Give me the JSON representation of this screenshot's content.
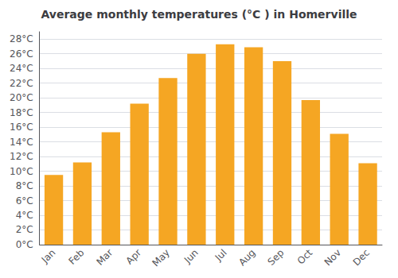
{
  "chart_data": {
    "type": "bar",
    "title": "Average monthly temperatures (°C ) in Homerville",
    "categories": [
      "Jan",
      "Feb",
      "Mar",
      "Apr",
      "May",
      "Jun",
      "Jul",
      "Aug",
      "Sep",
      "Oct",
      "Nov",
      "Dec"
    ],
    "values": [
      9.5,
      11.2,
      15.3,
      19.2,
      22.7,
      26.0,
      27.3,
      26.9,
      25.0,
      19.7,
      15.1,
      11.1
    ],
    "color": "#F5A623",
    "ylim": [
      0,
      29
    ],
    "yticks": [
      {
        "value": 0,
        "label": "0°C"
      },
      {
        "value": 2,
        "label": "2°C"
      },
      {
        "value": 4,
        "label": "4°C"
      },
      {
        "value": 6,
        "label": "6°C"
      },
      {
        "value": 8,
        "label": "8°C"
      },
      {
        "value": 10,
        "label": "10°C"
      },
      {
        "value": 12,
        "label": "12°C"
      },
      {
        "value": 14,
        "label": "14°C"
      },
      {
        "value": 16,
        "label": "16°C"
      },
      {
        "value": 18,
        "label": "18°C"
      },
      {
        "value": 20,
        "label": "20°C"
      },
      {
        "value": 22,
        "label": "22°C"
      },
      {
        "value": 24,
        "label": "24°C"
      },
      {
        "value": 26,
        "label": "26°C"
      },
      {
        "value": 28,
        "label": "28°C"
      }
    ],
    "grid": true
  }
}
